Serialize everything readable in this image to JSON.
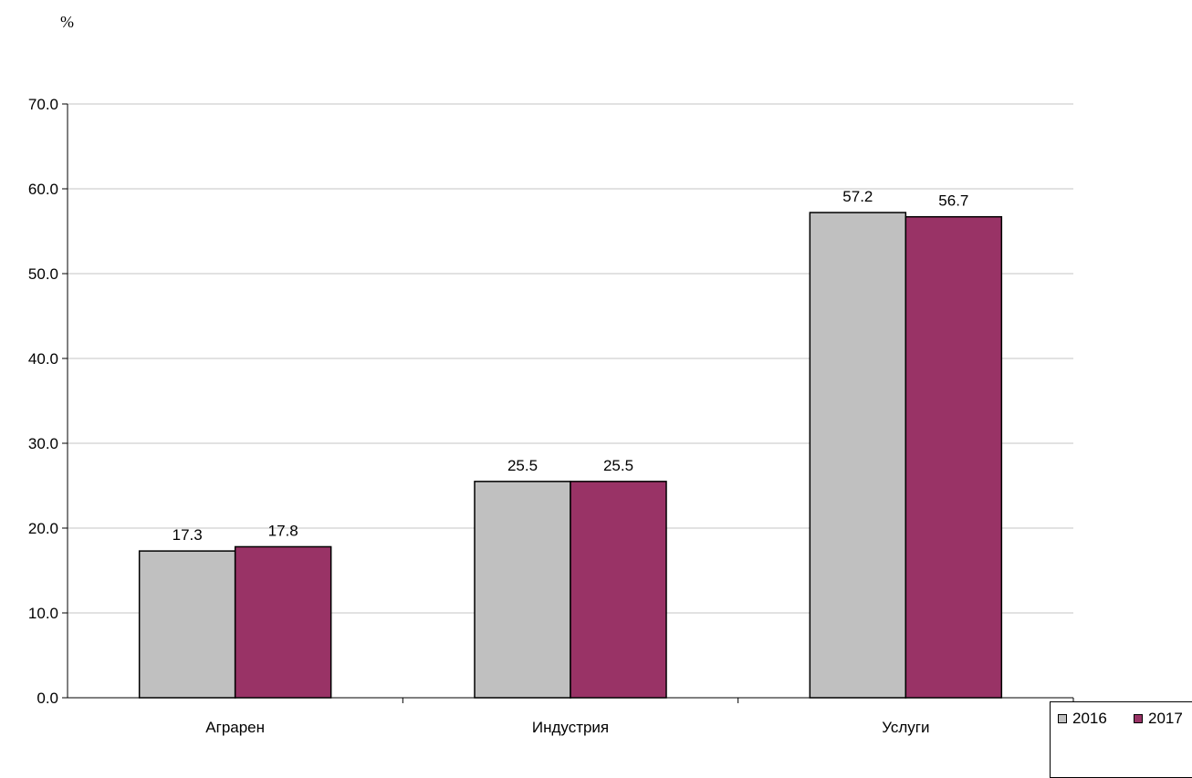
{
  "unit_label": "%",
  "chart_data": {
    "type": "bar",
    "categories": [
      "Аграрен",
      "Индустрия",
      "Услуги"
    ],
    "series": [
      {
        "name": "2016",
        "values": [
          17.3,
          25.5,
          57.2
        ],
        "color": "#c0c0c0"
      },
      {
        "name": "2017",
        "values": [
          17.8,
          25.5,
          56.7
        ],
        "color": "#993366"
      }
    ],
    "ylim": [
      0,
      70
    ],
    "ytick_step": 10,
    "ytick_labels": [
      "0.0",
      "10.0",
      "20.0",
      "30.0",
      "40.0",
      "50.0",
      "60.0",
      "70.0"
    ],
    "data_labels": [
      [
        "17.3",
        "25.5",
        "57.2"
      ],
      [
        "17.8",
        "25.5",
        "56.7"
      ]
    ],
    "grid": true,
    "legend_position": "bottom-right"
  }
}
